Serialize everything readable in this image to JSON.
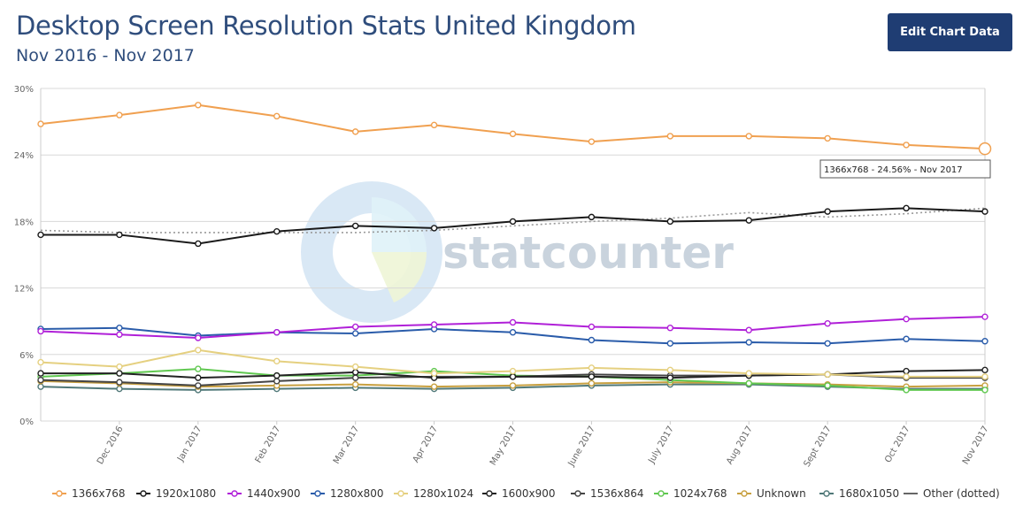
{
  "header": {
    "title": "Desktop Screen Resolution Stats United Kingdom",
    "subtitle": "Nov 2016 - Nov 2017",
    "edit_button": "Edit Chart Data"
  },
  "watermark": {
    "text": "statcounter"
  },
  "tooltip": {
    "text": "1366x768 - 24.56% - Nov 2017"
  },
  "chart_data": {
    "type": "line",
    "title": "Desktop Screen Resolution Stats United Kingdom",
    "subtitle": "Nov 2016 - Nov 2017",
    "xlabel": "",
    "ylabel": "",
    "ylim": [
      0,
      30
    ],
    "yticks": [
      0,
      6,
      12,
      18,
      24,
      30
    ],
    "ytick_labels": [
      "0%",
      "6%",
      "12%",
      "18%",
      "24%",
      "30%"
    ],
    "categories": [
      "Nov 2016",
      "Dec 2016",
      "Jan 2017",
      "Feb 2017",
      "Mar 2017",
      "Apr 2017",
      "May 2017",
      "June 2017",
      "July 2017",
      "Aug 2017",
      "Sept 2017",
      "Oct 2017",
      "Nov 2017"
    ],
    "x_tick_labels": [
      "Dec 2016",
      "Jan 2017",
      "Feb 2017",
      "Mar 2017",
      "Apr 2017",
      "May 2017",
      "June 2017",
      "July 2017",
      "Aug 2017",
      "Sept 2017",
      "Oct 2017",
      "Nov 2017"
    ],
    "grid": true,
    "legend_position": "bottom",
    "series": [
      {
        "name": "1366x768",
        "color": "#f0a050",
        "values": [
          26.8,
          27.6,
          28.5,
          27.5,
          26.1,
          26.7,
          25.9,
          25.2,
          25.7,
          25.7,
          25.5,
          24.9,
          24.56
        ]
      },
      {
        "name": "1920x1080",
        "color": "#1a1a1a",
        "values": [
          16.8,
          16.8,
          16.0,
          17.1,
          17.6,
          17.4,
          18.0,
          18.4,
          18.0,
          18.1,
          18.9,
          19.2,
          18.9
        ]
      },
      {
        "name": "1440x900",
        "color": "#b020d8",
        "values": [
          8.1,
          7.8,
          7.5,
          8.0,
          8.5,
          8.7,
          8.9,
          8.5,
          8.4,
          8.2,
          8.8,
          9.2,
          9.4
        ]
      },
      {
        "name": "1280x800",
        "color": "#2a5caa",
        "values": [
          8.3,
          8.4,
          7.7,
          8.0,
          7.9,
          8.3,
          8.0,
          7.3,
          7.0,
          7.1,
          7.0,
          7.4,
          7.2
        ]
      },
      {
        "name": "1280x1024",
        "color": "#e5d080",
        "values": [
          5.3,
          4.9,
          6.4,
          5.4,
          4.9,
          4.3,
          4.5,
          4.8,
          4.6,
          4.3,
          4.2,
          4.0,
          4.0
        ]
      },
      {
        "name": "1600x900",
        "color": "#222222",
        "values": [
          4.3,
          4.3,
          3.9,
          4.1,
          4.4,
          3.9,
          4.0,
          4.0,
          3.9,
          4.1,
          4.2,
          4.5,
          4.6
        ]
      },
      {
        "name": "1536x864",
        "color": "#444444",
        "values": [
          3.7,
          3.5,
          3.2,
          3.6,
          3.9,
          4.0,
          4.0,
          4.2,
          4.1,
          4.1,
          4.2,
          3.9,
          3.9
        ]
      },
      {
        "name": "1024x768",
        "color": "#60c850",
        "values": [
          4.0,
          4.3,
          4.7,
          4.1,
          4.1,
          4.5,
          4.1,
          4.0,
          3.7,
          3.4,
          3.2,
          2.8,
          2.8
        ]
      },
      {
        "name": "Unknown",
        "color": "#c8a040",
        "values": [
          3.6,
          3.4,
          3.1,
          3.2,
          3.3,
          3.1,
          3.2,
          3.4,
          3.5,
          3.4,
          3.3,
          3.1,
          3.2
        ]
      },
      {
        "name": "1680x1050",
        "color": "#507878",
        "values": [
          3.1,
          2.9,
          2.8,
          2.9,
          3.0,
          2.9,
          3.0,
          3.2,
          3.3,
          3.3,
          3.1,
          2.9,
          2.9
        ]
      }
    ],
    "other_series": {
      "name": "Other (dotted)",
      "color": "#999999",
      "values": [
        17.2,
        17.0,
        17.0,
        17.0,
        17.0,
        17.2,
        17.6,
        18.0,
        18.3,
        18.8,
        18.4,
        18.7,
        19.2
      ]
    },
    "highlight": {
      "series": "1366x768",
      "category": "Nov 2017",
      "value": 24.56
    }
  }
}
